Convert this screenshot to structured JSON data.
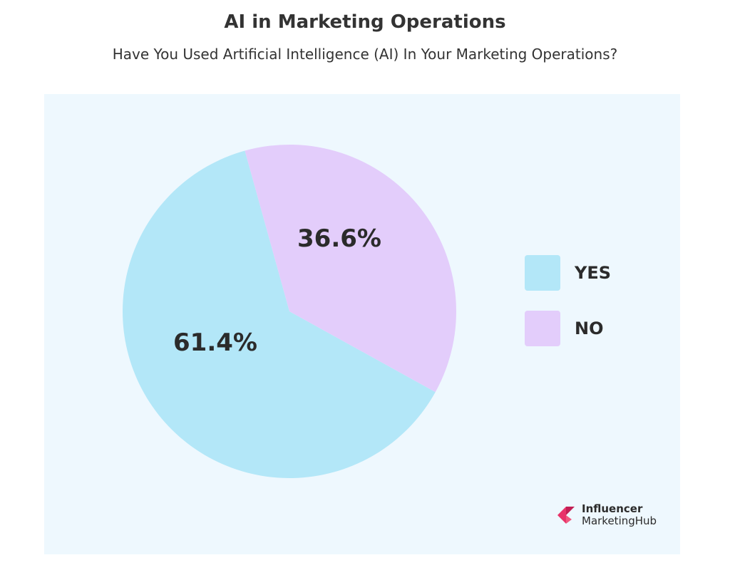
{
  "title": "AI in Marketing Operations",
  "subtitle": "Have You Used Artificial Intelligence (AI) In Your Marketing Operations?",
  "chart_data": {
    "type": "pie",
    "title": "AI in Marketing Operations",
    "subtitle": "Have You Used Artificial Intelligence (AI) In Your Marketing Operations?",
    "categories": [
      "YES",
      "NO"
    ],
    "values": [
      61.4,
      36.6
    ],
    "labels": [
      "61.4%",
      "36.6%"
    ],
    "colors": [
      "#b3e7f8",
      "#e3cdfb"
    ],
    "legend_position": "right"
  },
  "legend": {
    "items": [
      {
        "label": "YES",
        "color": "#b3e7f8"
      },
      {
        "label": "NO",
        "color": "#e3cdfb"
      }
    ]
  },
  "brand": {
    "line1": "Influencer",
    "line2": "MarketingHub",
    "icon": "influencer-marketinghub-logo",
    "color": "#e8336a"
  }
}
